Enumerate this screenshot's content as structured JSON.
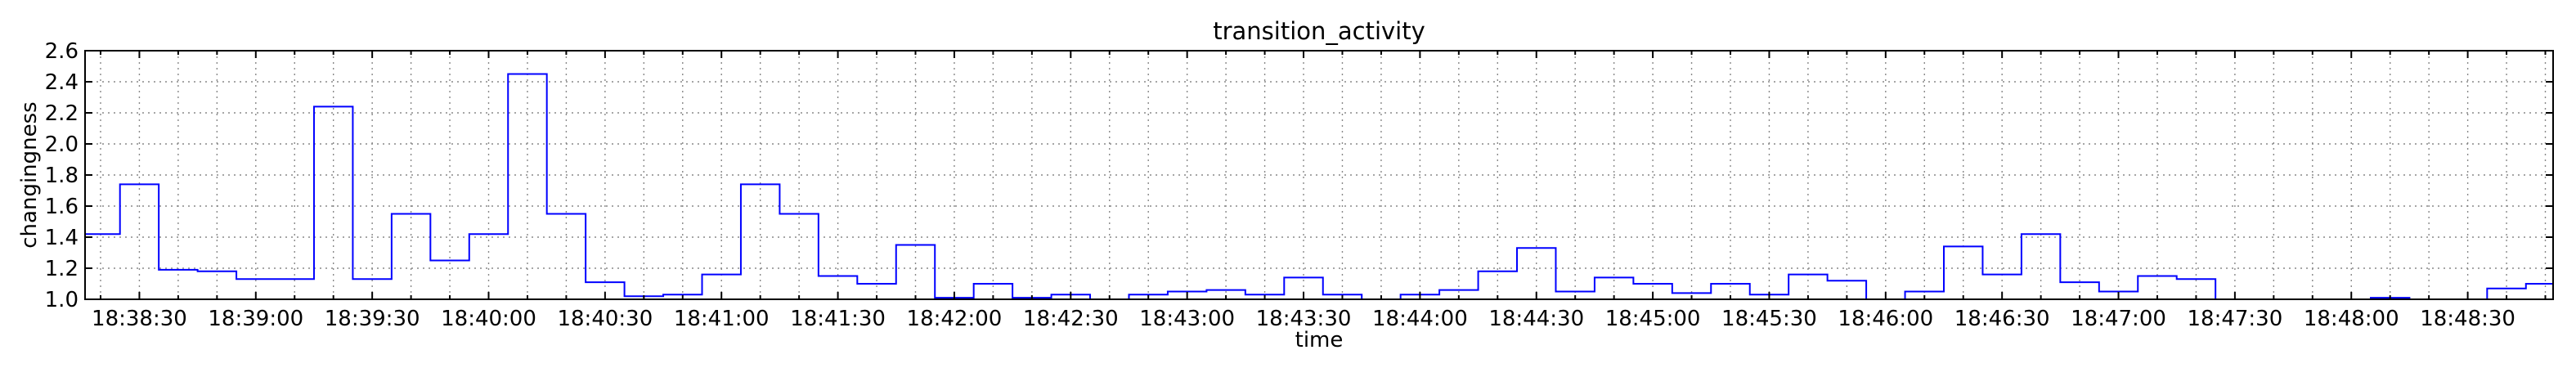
{
  "chart_data": {
    "type": "line",
    "title": "transition_activity",
    "xlabel": "time",
    "ylabel": "changingness",
    "ylim": [
      1.0,
      2.6
    ],
    "xlim": [
      "18:38:16",
      "18:48:52"
    ],
    "grid": true,
    "line_style": "step",
    "color": "#0000ff",
    "yticks": [
      "1.0",
      "1.2",
      "1.4",
      "1.6",
      "1.8",
      "2.0",
      "2.2",
      "2.4",
      "2.6"
    ],
    "xticks": [
      "18:38:30",
      "18:39:00",
      "18:39:30",
      "18:40:00",
      "18:40:30",
      "18:41:00",
      "18:41:30",
      "18:42:00",
      "18:42:30",
      "18:43:00",
      "18:43:30",
      "18:44:00",
      "18:44:30",
      "18:45:00",
      "18:45:30",
      "18:46:00",
      "18:46:30",
      "18:47:00",
      "18:47:30",
      "18:48:00",
      "18:48:30"
    ],
    "series": [
      {
        "x": [
          "18:38:16",
          "18:38:25",
          "18:38:35",
          "18:38:45",
          "18:38:55",
          "18:39:15",
          "18:39:25",
          "18:39:35",
          "18:39:45",
          "18:39:55",
          "18:40:05",
          "18:40:15",
          "18:40:25",
          "18:40:35",
          "18:40:45",
          "18:40:55",
          "18:41:05",
          "18:41:15",
          "18:41:25",
          "18:41:35",
          "18:41:45",
          "18:41:55",
          "18:42:05",
          "18:42:15",
          "18:42:25",
          "18:42:35",
          "18:42:45",
          "18:42:55",
          "18:43:05",
          "18:43:15",
          "18:43:25",
          "18:43:35",
          "18:43:45",
          "18:43:55",
          "18:44:05",
          "18:44:15",
          "18:44:25",
          "18:44:35",
          "18:44:45",
          "18:44:55",
          "18:45:05",
          "18:45:15",
          "18:45:25",
          "18:45:35",
          "18:45:45",
          "18:45:55",
          "18:46:05",
          "18:46:15",
          "18:46:25",
          "18:46:35",
          "18:46:45",
          "18:46:55",
          "18:47:05",
          "18:47:15",
          "18:47:25",
          "18:47:35",
          "18:48:05",
          "18:48:15",
          "18:48:25",
          "18:48:35",
          "18:48:45",
          "18:48:52"
        ],
        "y": [
          1.42,
          1.74,
          1.19,
          1.18,
          1.13,
          2.24,
          1.13,
          1.55,
          1.25,
          1.42,
          2.45,
          1.55,
          1.11,
          1.02,
          1.03,
          1.16,
          1.74,
          1.55,
          1.15,
          1.1,
          1.35,
          1.01,
          1.1,
          1.01,
          1.03,
          1.0,
          1.03,
          1.05,
          1.06,
          1.03,
          1.14,
          1.03,
          1.0,
          1.03,
          1.06,
          1.18,
          1.33,
          1.05,
          1.14,
          1.1,
          1.04,
          1.1,
          1.03,
          1.16,
          1.12,
          1.0,
          1.05,
          1.34,
          1.16,
          1.42,
          1.11,
          1.05,
          1.15,
          1.13,
          1.0,
          1.0,
          1.01,
          1.0,
          1.0,
          1.07,
          1.1,
          1.24
        ]
      }
    ]
  }
}
